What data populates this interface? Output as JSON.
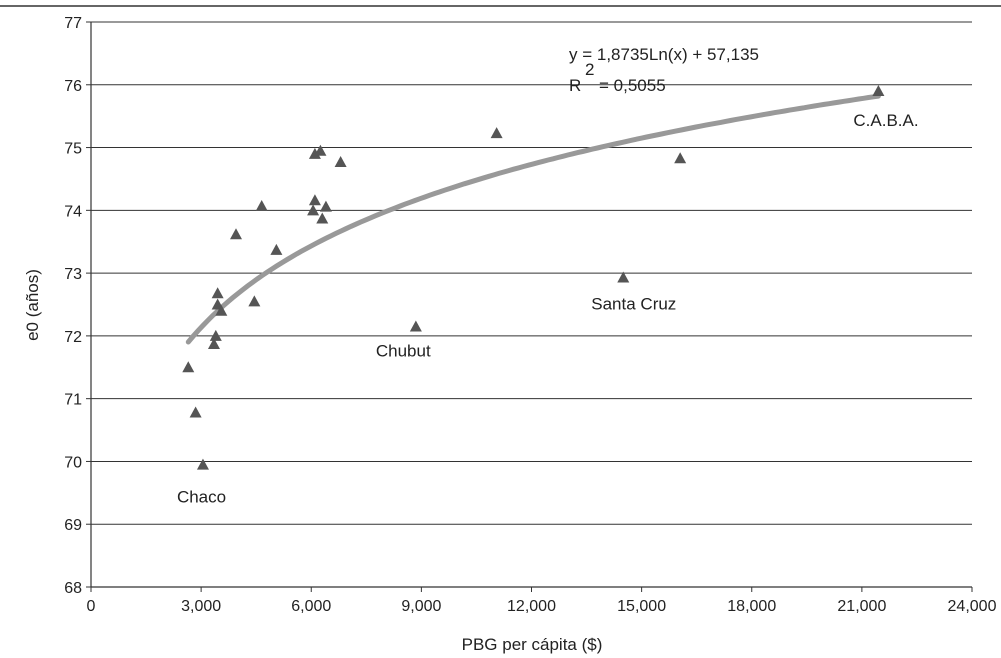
{
  "chart_data": {
    "type": "scatter",
    "xlabel": "PBG per cápita ($)",
    "ylabel": "e0 (años)",
    "xlim": [
      0,
      24000
    ],
    "ylim": [
      68,
      77
    ],
    "x_ticks": [
      0,
      3000,
      6000,
      9000,
      12000,
      15000,
      18000,
      21000,
      24000
    ],
    "x_tick_labels": [
      "0",
      "3,000",
      "6,000",
      "9,000",
      "12,000",
      "15,000",
      "18,000",
      "21,000",
      "24,000"
    ],
    "y_ticks": [
      68,
      69,
      70,
      71,
      72,
      73,
      74,
      75,
      76,
      77
    ],
    "y_tick_labels": [
      "68",
      "69",
      "70",
      "71",
      "72",
      "73",
      "74",
      "75",
      "76",
      "77"
    ],
    "grid": "horizontal",
    "marker": "triangle",
    "marker_color": "#555555",
    "trend_color": "#999999",
    "points": [
      {
        "x": 2650,
        "y": 71.5
      },
      {
        "x": 2850,
        "y": 70.78
      },
      {
        "x": 3050,
        "y": 69.95,
        "label": "Chaco"
      },
      {
        "x": 3350,
        "y": 71.87
      },
      {
        "x": 3400,
        "y": 72.0
      },
      {
        "x": 3450,
        "y": 72.5
      },
      {
        "x": 3450,
        "y": 72.68
      },
      {
        "x": 3550,
        "y": 72.4
      },
      {
        "x": 3950,
        "y": 73.62
      },
      {
        "x": 4450,
        "y": 72.55
      },
      {
        "x": 4650,
        "y": 74.07
      },
      {
        "x": 5050,
        "y": 73.37
      },
      {
        "x": 6050,
        "y": 74.0
      },
      {
        "x": 6100,
        "y": 74.16
      },
      {
        "x": 6100,
        "y": 74.9
      },
      {
        "x": 6250,
        "y": 74.95
      },
      {
        "x": 6300,
        "y": 73.87
      },
      {
        "x": 6400,
        "y": 74.06
      },
      {
        "x": 6800,
        "y": 74.77
      },
      {
        "x": 8850,
        "y": 72.15,
        "label": "Chubut"
      },
      {
        "x": 11050,
        "y": 75.23
      },
      {
        "x": 14500,
        "y": 72.93,
        "label": "Santa Cruz"
      },
      {
        "x": 16050,
        "y": 74.83
      },
      {
        "x": 21450,
        "y": 75.9,
        "label": "C.A.B.A."
      }
    ],
    "trendline": {
      "type": "logarithmic",
      "a": 1.8735,
      "b": 57.135,
      "x_range": [
        2650,
        21450
      ],
      "equation": "y = 1,8735Ln(x) + 57,135",
      "r2_prefix": "R",
      "r2_exponent": "2",
      "r2_value": "= 0,5055"
    }
  }
}
